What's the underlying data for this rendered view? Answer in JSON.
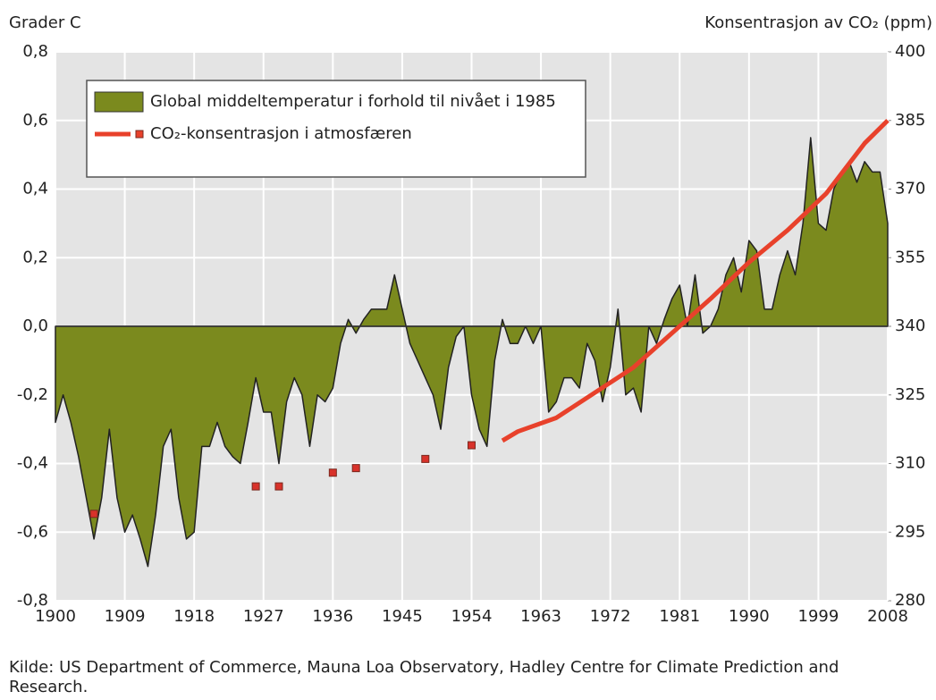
{
  "chart_data": {
    "type": "area",
    "y_label": "Grader C",
    "y2_label": "Konsentrasjon av CO₂ (ppm)",
    "source": "Kilde: US Department of Commerce, Mauna Loa Observatory, Hadley Centre for Climate Prediction and Research.",
    "xlim": [
      1900,
      2008
    ],
    "xticks": [
      1900,
      1909,
      1918,
      1927,
      1936,
      1945,
      1954,
      1963,
      1972,
      1981,
      1990,
      1999,
      2008
    ],
    "ylim": [
      -0.8,
      0.8
    ],
    "yticks": [
      {
        "value": -0.8,
        "label": "-0,8"
      },
      {
        "value": -0.6,
        "label": "-0,6"
      },
      {
        "value": -0.4,
        "label": "-0,4"
      },
      {
        "value": -0.2,
        "label": "-0,2"
      },
      {
        "value": 0,
        "label": "0,0"
      },
      {
        "value": 0.2,
        "label": "0,2"
      },
      {
        "value": 0.4,
        "label": "0,4"
      },
      {
        "value": 0.6,
        "label": "0,6"
      },
      {
        "value": 0.8,
        "label": "0,8"
      }
    ],
    "y2lim": [
      280,
      400
    ],
    "y2ticks": [
      280,
      295,
      310,
      325,
      340,
      355,
      370,
      385,
      400
    ],
    "grid": true,
    "legend": "top-left",
    "series": [
      {
        "name": "Global middeltemperatur i forhold til nivået i 1985",
        "color": "#7b8a1e",
        "kind": "area",
        "x": [
          1900,
          1901,
          1902,
          1903,
          1904,
          1905,
          1906,
          1907,
          1908,
          1909,
          1910,
          1911,
          1912,
          1913,
          1914,
          1915,
          1916,
          1917,
          1918,
          1919,
          1920,
          1921,
          1922,
          1923,
          1924,
          1925,
          1926,
          1927,
          1928,
          1929,
          1930,
          1931,
          1932,
          1933,
          1934,
          1935,
          1936,
          1937,
          1938,
          1939,
          1940,
          1941,
          1942,
          1943,
          1944,
          1945,
          1946,
          1947,
          1948,
          1949,
          1950,
          1951,
          1952,
          1953,
          1954,
          1955,
          1956,
          1957,
          1958,
          1959,
          1960,
          1961,
          1962,
          1963,
          1964,
          1965,
          1966,
          1967,
          1968,
          1969,
          1970,
          1971,
          1972,
          1973,
          1974,
          1975,
          1976,
          1977,
          1978,
          1979,
          1980,
          1981,
          1982,
          1983,
          1984,
          1985,
          1986,
          1987,
          1988,
          1989,
          1990,
          1991,
          1992,
          1993,
          1994,
          1995,
          1996,
          1997,
          1998,
          1999,
          2000,
          2001,
          2002,
          2003,
          2004,
          2005,
          2006,
          2007,
          2008
        ],
        "values": [
          -0.28,
          -0.2,
          -0.28,
          -0.38,
          -0.5,
          -0.62,
          -0.5,
          -0.3,
          -0.5,
          -0.6,
          -0.55,
          -0.62,
          -0.7,
          -0.55,
          -0.35,
          -0.3,
          -0.5,
          -0.62,
          -0.6,
          -0.35,
          -0.35,
          -0.28,
          -0.35,
          -0.38,
          -0.4,
          -0.28,
          -0.15,
          -0.25,
          -0.25,
          -0.4,
          -0.22,
          -0.15,
          -0.2,
          -0.35,
          -0.2,
          -0.22,
          -0.18,
          -0.05,
          0.02,
          -0.02,
          0.02,
          0.05,
          0.05,
          0.05,
          0.15,
          0.05,
          -0.05,
          -0.1,
          -0.15,
          -0.2,
          -0.3,
          -0.12,
          -0.03,
          0,
          -0.2,
          -0.3,
          -0.35,
          -0.1,
          0.02,
          -0.05,
          -0.05,
          0,
          -0.05,
          0,
          -0.25,
          -0.22,
          -0.15,
          -0.15,
          -0.18,
          -0.05,
          -0.1,
          -0.22,
          -0.12,
          0.05,
          -0.2,
          -0.18,
          -0.25,
          0,
          -0.05,
          0.02,
          0.08,
          0.12,
          0,
          0.15,
          -0.02,
          0,
          0.05,
          0.15,
          0.2,
          0.1,
          0.25,
          0.22,
          0.05,
          0.05,
          0.15,
          0.22,
          0.15,
          0.3,
          0.55,
          0.3,
          0.28,
          0.4,
          0.45,
          0.48,
          0.42,
          0.48,
          0.45,
          0.45,
          0.3
        ]
      },
      {
        "name": "CO₂-konsentrasjon i atmosfæren",
        "color": "#e8412b",
        "kind": "line",
        "axis": "y2",
        "x": [
          1958,
          1960,
          1965,
          1970,
          1975,
          1980,
          1985,
          1990,
          1995,
          2000,
          2005,
          2008
        ],
        "values": [
          315,
          317,
          320,
          325.5,
          331,
          338.5,
          346,
          354,
          361,
          369,
          380,
          385
        ]
      },
      {
        "color": "#d8322a",
        "kind": "marker",
        "axis": "y2",
        "x": [
          1905,
          1926,
          1929,
          1936,
          1939,
          1948,
          1954
        ],
        "values": [
          299,
          305,
          305,
          308,
          309,
          311,
          314
        ]
      }
    ]
  }
}
